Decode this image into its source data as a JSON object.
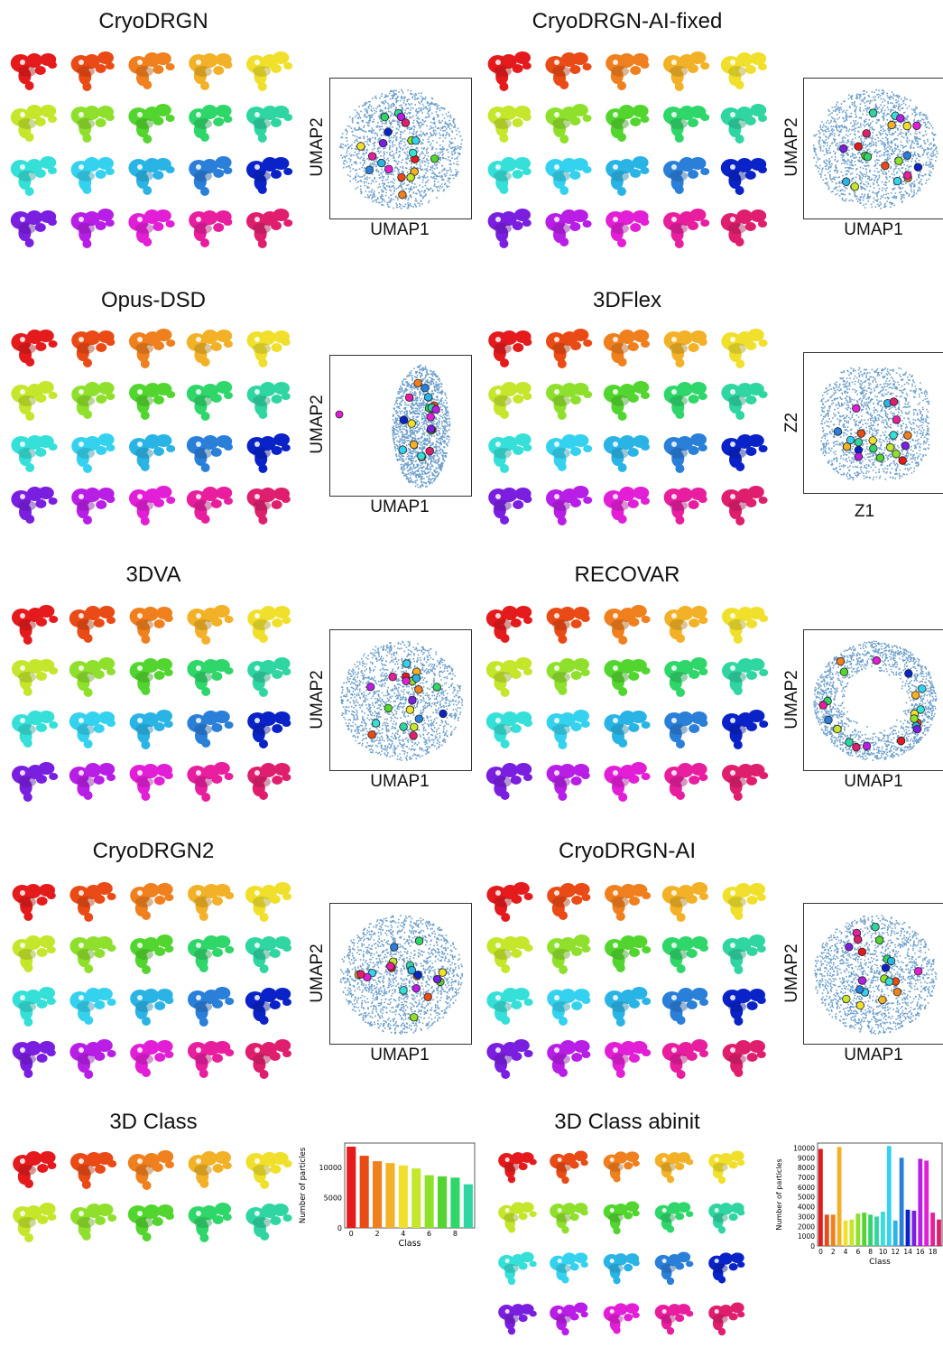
{
  "palette": [
    "#e41a1c",
    "#ea4a15",
    "#f07f1e",
    "#f2b126",
    "#f0e02c",
    "#c4e62b",
    "#8fe02c",
    "#52d62f",
    "#2fd66a",
    "#2fd6a2",
    "#35e0d8",
    "#35d2ef",
    "#2ab4e6",
    "#2a7fd9",
    "#0a23c8",
    "#7a1ee0",
    "#b81ee6",
    "#e21ed6",
    "#e81e9e",
    "#e01e6e"
  ],
  "panels": [
    {
      "id": "cryodrgn",
      "title": "CryoDRGN",
      "xlabel": "UMAP1",
      "ylabel": "UMAP2",
      "kind": "umap",
      "shape": "disk",
      "rows": 4
    },
    {
      "id": "cryodrgn-ai-fixed",
      "title": "CryoDRGN-AI-fixed",
      "xlabel": "UMAP1",
      "ylabel": "UMAP2",
      "kind": "umap",
      "shape": "blob",
      "rows": 4
    },
    {
      "id": "opus-dsd",
      "title": "Opus-DSD",
      "xlabel": "UMAP1",
      "ylabel": "UMAP2",
      "kind": "umap",
      "shape": "ellipse",
      "rows": 4
    },
    {
      "id": "3dflex",
      "title": "3DFlex",
      "xlabel": "Z1",
      "ylabel": "Z2",
      "kind": "latent",
      "shape": "square",
      "rows": 4
    },
    {
      "id": "3dva",
      "title": "3DVA",
      "xlabel": "UMAP1",
      "ylabel": "UMAP2",
      "kind": "umap",
      "shape": "disk",
      "rows": 4
    },
    {
      "id": "recovar",
      "title": "RECOVAR",
      "xlabel": "UMAP1",
      "ylabel": "UMAP2",
      "kind": "umap",
      "shape": "ring",
      "rows": 4
    },
    {
      "id": "cryodrgn2",
      "title": "CryoDRGN2",
      "xlabel": "UMAP1",
      "ylabel": "UMAP2",
      "kind": "umap",
      "shape": "disk",
      "rows": 4
    },
    {
      "id": "cryodrgn-ai",
      "title": "CryoDRGN-AI",
      "xlabel": "UMAP1",
      "ylabel": "UMAP2",
      "kind": "umap",
      "shape": "disk",
      "rows": 4
    },
    {
      "id": "3dclass",
      "title": "3D Class",
      "kind": "bar",
      "rows": 2
    },
    {
      "id": "3dclass-abinit",
      "title": "3D Class abinit",
      "kind": "bar",
      "rows": 4
    }
  ],
  "chart_data": [
    {
      "type": "bar",
      "panel": "3D Class",
      "categories": [
        0,
        1,
        2,
        3,
        4,
        5,
        6,
        7,
        8,
        9
      ],
      "values": [
        13400,
        11900,
        11000,
        10700,
        10300,
        9800,
        8700,
        8500,
        8300,
        7200
      ],
      "xlabel": "Class",
      "ylabel": "Number of particles",
      "ylim": [
        0,
        14000
      ],
      "yticks": [
        0,
        5000,
        10000
      ],
      "xticks": [
        0,
        2,
        4,
        6,
        8
      ],
      "colors": [
        "#e41a1c",
        "#ea4a15",
        "#f07f1e",
        "#f2b126",
        "#f0e02c",
        "#c4e62b",
        "#8fe02c",
        "#52d62f",
        "#2fd66a",
        "#2fd6a2"
      ]
    },
    {
      "type": "bar",
      "panel": "3D Class abinit",
      "categories": [
        0,
        1,
        2,
        3,
        4,
        5,
        6,
        7,
        8,
        9,
        10,
        11,
        12,
        13,
        14,
        15,
        16,
        17,
        18,
        19
      ],
      "values": [
        9900,
        3200,
        3200,
        10100,
        2600,
        2700,
        3300,
        3400,
        3200,
        3000,
        3500,
        10200,
        2600,
        9000,
        3700,
        3600,
        8900,
        8700,
        3400,
        2700
      ],
      "xlabel": "Class",
      "ylabel": "Number of particles",
      "ylim": [
        0,
        10500
      ],
      "yticks": [
        0,
        1000,
        2000,
        3000,
        4000,
        5000,
        6000,
        7000,
        8000,
        9000,
        10000
      ],
      "xticks": [
        0,
        2,
        4,
        6,
        8,
        10,
        12,
        14,
        16,
        18
      ],
      "colors": [
        "#e41a1c",
        "#ea4a15",
        "#f07f1e",
        "#f2b126",
        "#f0e02c",
        "#c4e62b",
        "#8fe02c",
        "#52d62f",
        "#2fd66a",
        "#2fd6a2",
        "#35e0d8",
        "#35d2ef",
        "#2ab4e6",
        "#2a7fd9",
        "#0a23c8",
        "#7a1ee0",
        "#b81ee6",
        "#e21ed6",
        "#e81e9e",
        "#e01e6e"
      ]
    }
  ]
}
